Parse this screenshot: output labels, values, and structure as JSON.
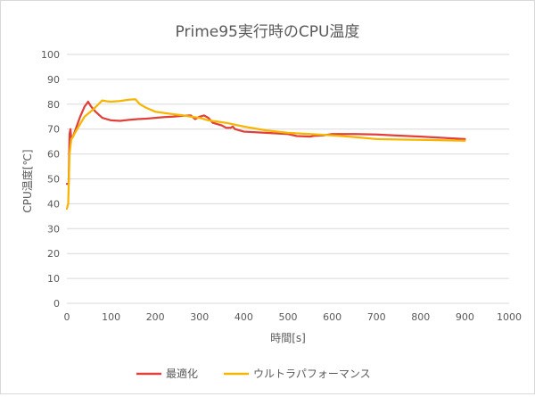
{
  "chart_data": {
    "type": "line",
    "title": "Prime95実行時のCPU温度",
    "xlabel": "時間[s]",
    "ylabel": "CPU温度[℃]",
    "xlim": [
      0,
      1000
    ],
    "ylim": [
      0,
      100
    ],
    "xticks": [
      0,
      100,
      200,
      300,
      400,
      500,
      600,
      700,
      800,
      900,
      1000
    ],
    "yticks": [
      0,
      10,
      20,
      30,
      40,
      50,
      60,
      70,
      80,
      90,
      100
    ],
    "grid": "horizontal",
    "legend_position": "bottom",
    "series": [
      {
        "name": "最適化",
        "color": "#e0403a",
        "points": [
          [
            0,
            48
          ],
          [
            4,
            48
          ],
          [
            6,
            68
          ],
          [
            8,
            70
          ],
          [
            10,
            66
          ],
          [
            14,
            67
          ],
          [
            20,
            70
          ],
          [
            30,
            75
          ],
          [
            40,
            79
          ],
          [
            48,
            81
          ],
          [
            55,
            79
          ],
          [
            65,
            77
          ],
          [
            80,
            74.5
          ],
          [
            100,
            73.5
          ],
          [
            120,
            73.3
          ],
          [
            140,
            73.7
          ],
          [
            160,
            74
          ],
          [
            180,
            74.2
          ],
          [
            200,
            74.5
          ],
          [
            220,
            74.8
          ],
          [
            240,
            75
          ],
          [
            260,
            75.3
          ],
          [
            280,
            75.5
          ],
          [
            290,
            74
          ],
          [
            300,
            75
          ],
          [
            310,
            75.5
          ],
          [
            320,
            74.5
          ],
          [
            330,
            72.5
          ],
          [
            350,
            71.5
          ],
          [
            360,
            70.5
          ],
          [
            370,
            70.5
          ],
          [
            375,
            71
          ],
          [
            380,
            70
          ],
          [
            400,
            69
          ],
          [
            450,
            68.5
          ],
          [
            500,
            68
          ],
          [
            520,
            67.2
          ],
          [
            550,
            67
          ],
          [
            560,
            67.3
          ],
          [
            580,
            67.5
          ],
          [
            600,
            68
          ],
          [
            650,
            68
          ],
          [
            700,
            67.8
          ],
          [
            750,
            67.4
          ],
          [
            800,
            67
          ],
          [
            850,
            66.5
          ],
          [
            900,
            66
          ]
        ]
      },
      {
        "name": "ウルトラパフォーマンス",
        "color": "#f8b500",
        "points": [
          [
            0,
            38
          ],
          [
            3,
            40
          ],
          [
            6,
            60
          ],
          [
            10,
            66
          ],
          [
            14,
            67
          ],
          [
            20,
            69
          ],
          [
            30,
            72
          ],
          [
            40,
            75
          ],
          [
            60,
            78
          ],
          [
            80,
            81.5
          ],
          [
            90,
            81.2
          ],
          [
            100,
            81
          ],
          [
            120,
            81.3
          ],
          [
            140,
            81.8
          ],
          [
            155,
            82
          ],
          [
            165,
            80
          ],
          [
            180,
            78.5
          ],
          [
            200,
            77
          ],
          [
            220,
            76.5
          ],
          [
            240,
            76
          ],
          [
            260,
            75.6
          ],
          [
            280,
            75
          ],
          [
            300,
            74.5
          ],
          [
            320,
            73.5
          ],
          [
            340,
            73
          ],
          [
            360,
            72.5
          ],
          [
            400,
            71
          ],
          [
            450,
            69.5
          ],
          [
            500,
            68.5
          ],
          [
            550,
            68
          ],
          [
            600,
            67.5
          ],
          [
            650,
            66.8
          ],
          [
            700,
            66
          ],
          [
            750,
            65.8
          ],
          [
            800,
            65.7
          ],
          [
            850,
            65.5
          ],
          [
            900,
            65.3
          ]
        ]
      }
    ]
  }
}
